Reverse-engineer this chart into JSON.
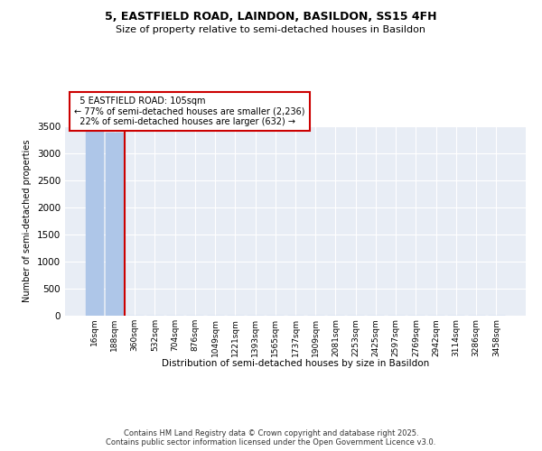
{
  "title_line1": "5, EASTFIELD ROAD, LAINDON, BASILDON, SS15 4FH",
  "title_line2": "Size of property relative to semi-detached houses in Basildon",
  "xlabel": "Distribution of semi-detached houses by size in Basildon",
  "ylabel": "Number of semi-detached properties",
  "categories": [
    "16sqm",
    "188sqm",
    "360sqm",
    "532sqm",
    "704sqm",
    "876sqm",
    "1049sqm",
    "1221sqm",
    "1393sqm",
    "1565sqm",
    "1737sqm",
    "1909sqm",
    "2081sqm",
    "2253sqm",
    "2425sqm",
    "2597sqm",
    "2769sqm",
    "2942sqm",
    "3114sqm",
    "3286sqm",
    "3458sqm"
  ],
  "values": [
    3400,
    3380,
    5,
    3,
    2,
    1,
    1,
    1,
    0,
    0,
    0,
    0,
    0,
    0,
    0,
    0,
    0,
    0,
    0,
    0,
    0
  ],
  "bar_color": "#aec6e8",
  "property_label": "5 EASTFIELD ROAD: 105sqm",
  "pct_smaller": 77,
  "count_smaller": 2236,
  "pct_larger": 22,
  "count_larger": 632,
  "vline_color": "#cc0000",
  "annotation_box_color": "#cc0000",
  "ylim": [
    0,
    3500
  ],
  "yticks": [
    0,
    500,
    1000,
    1500,
    2000,
    2500,
    3000,
    3500
  ],
  "bg_color": "#e8edf5",
  "grid_color": "#ffffff",
  "footer_line1": "Contains HM Land Registry data © Crown copyright and database right 2025.",
  "footer_line2": "Contains public sector information licensed under the Open Government Licence v3.0."
}
